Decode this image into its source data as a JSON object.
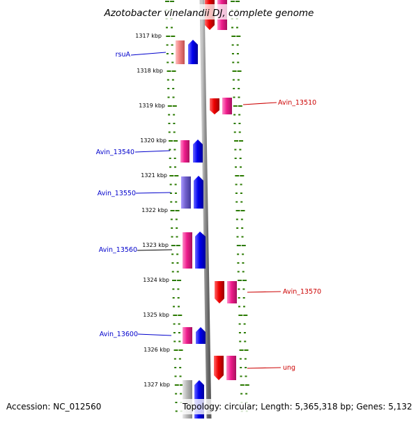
{
  "title": "Azotobacter vinelandii DJ, complete genome",
  "accession": "Accession: NC_012560",
  "topology": "Topology: circular; Length: 5,365,318 bp; Genes: 5,132",
  "colors": {
    "forward_blue": "#0000ee",
    "reverse_red": "#ee0000",
    "pink": "#ee1c8c",
    "salmon": "#f08080",
    "violet": "#7060cc",
    "gray": "#b8b8b8",
    "tick_green": "#2a7a00",
    "backbone_gray": "#8a8a8a",
    "left_label_blue": "#0000cc",
    "right_label_red": "#cc0000"
  },
  "ruler_labels": [
    {
      "text": "1317 kbp",
      "kb": 1317
    },
    {
      "text": "1318 kbp",
      "kb": 1318
    },
    {
      "text": "1319 kbp",
      "kb": 1319
    },
    {
      "text": "1320 kbp",
      "kb": 1320
    },
    {
      "text": "1321 kbp",
      "kb": 1321
    },
    {
      "text": "1322 kbp",
      "kb": 1322
    },
    {
      "text": "1323 kbp",
      "kb": 1323
    },
    {
      "text": "1324 kbp",
      "kb": 1324
    },
    {
      "text": "1325 kbp",
      "kb": 1325
    },
    {
      "text": "1326 kbp",
      "kb": 1326
    },
    {
      "text": "1327 kbp",
      "kb": 1327
    }
  ],
  "left_labels": [
    "rsuA",
    "Avin_13540",
    "Avin_13550",
    "Avin_13560",
    "Avin_13600"
  ],
  "right_labels": [
    "Avin_13510",
    "Avin_13570",
    "ung"
  ]
}
